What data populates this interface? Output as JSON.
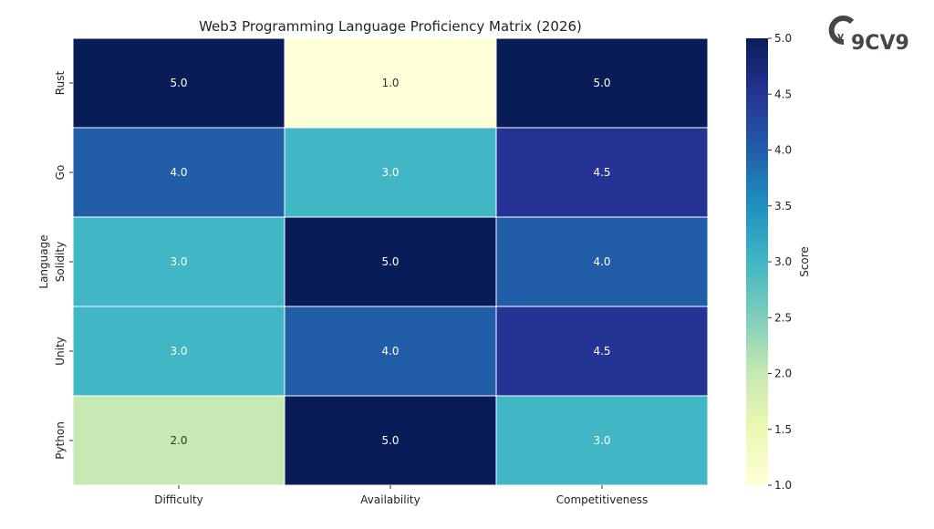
{
  "chart_data": {
    "type": "heatmap",
    "title": "Web3 Programming Language Proficiency Matrix (2026)",
    "xlabel": "",
    "ylabel": "Language",
    "x_categories": [
      "Difficulty",
      "Availability",
      "Competitiveness"
    ],
    "y_categories": [
      "Rust",
      "Go",
      "Solidity",
      "Unity",
      "Python"
    ],
    "values": [
      [
        5.0,
        1.0,
        5.0
      ],
      [
        4.0,
        3.0,
        4.5
      ],
      [
        3.0,
        5.0,
        4.0
      ],
      [
        3.0,
        4.0,
        4.5
      ],
      [
        2.0,
        5.0,
        3.0
      ]
    ],
    "colormap": "YlGnBu",
    "colormap_stops": [
      "#ffffd9",
      "#edf8b1",
      "#c7e9b4",
      "#7fcdbb",
      "#41b6c4",
      "#1d91c0",
      "#225ea8",
      "#253494",
      "#081d58"
    ],
    "colorbar": {
      "label": "Score",
      "range": [
        1.0,
        5.0
      ],
      "ticks": [
        "1.0",
        "1.5",
        "2.0",
        "2.5",
        "3.0",
        "3.5",
        "4.0",
        "4.5",
        "5.0"
      ]
    },
    "annotations_format": "0.1f"
  },
  "logo": {
    "text": "9CV9",
    "color": "#4a4444"
  }
}
